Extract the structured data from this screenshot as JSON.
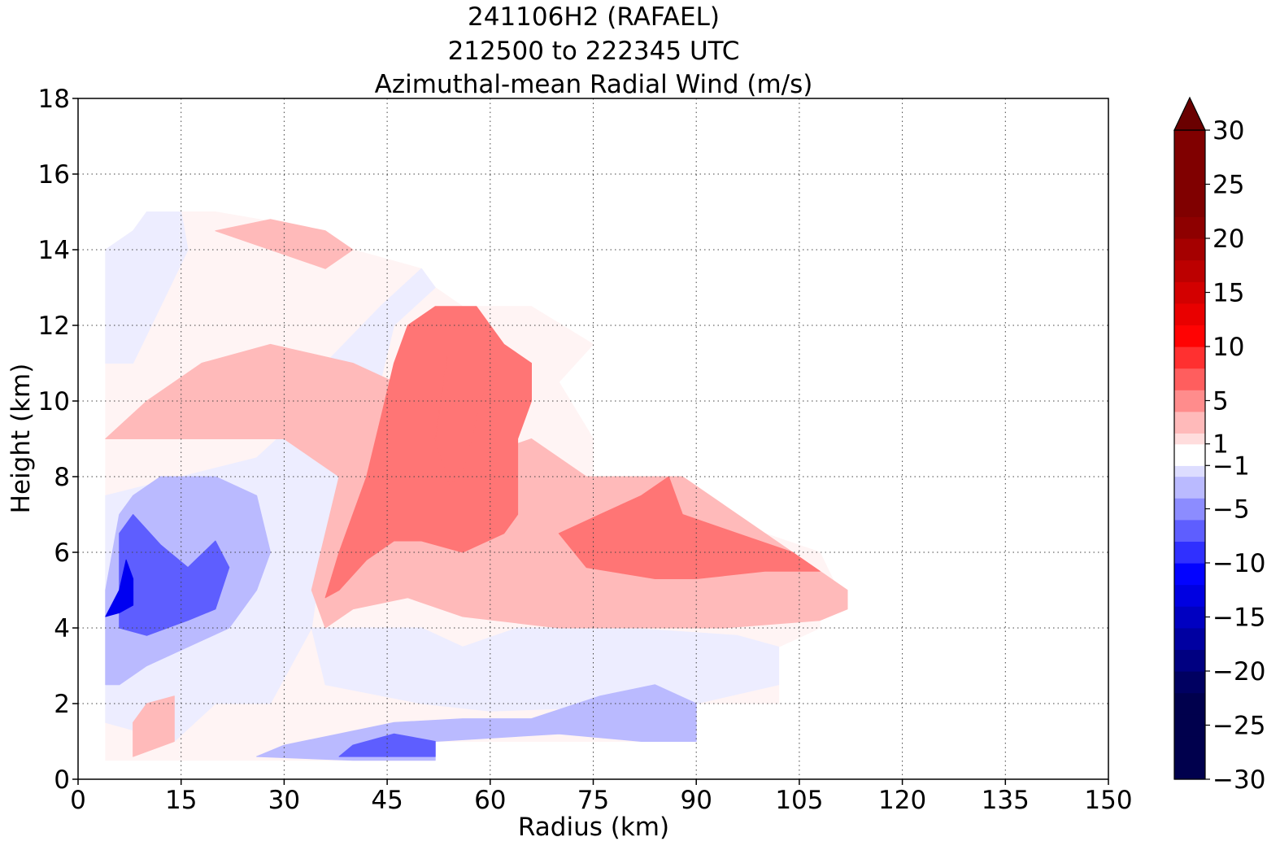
{
  "chart_data": {
    "type": "heatmap",
    "title_lines": [
      "241106H2 (RAFAEL)",
      "212500 to 222345 UTC",
      "Azimuthal-mean Radial Wind (m/s)"
    ],
    "xlabel": "Radius (km)",
    "ylabel": "Height (km)",
    "xlim": [
      0,
      150
    ],
    "ylim": [
      0,
      18
    ],
    "xticks": [
      0,
      15,
      30,
      45,
      60,
      75,
      90,
      105,
      120,
      135,
      150
    ],
    "yticks": [
      0,
      2,
      4,
      6,
      8,
      10,
      12,
      14,
      16,
      18
    ],
    "grid": true,
    "colorbar": {
      "label_values": [
        30,
        25,
        20,
        15,
        10,
        5,
        1,
        -1,
        -5,
        -10,
        -15,
        -20,
        -25,
        -30
      ],
      "labels": [
        "30",
        "25",
        "20",
        "15",
        "10",
        "5",
        "1",
        "−1",
        "−5",
        "−10",
        "−15",
        "−20",
        "−25",
        "−30"
      ],
      "levels": [
        -30,
        -28,
        -26,
        -24,
        -22,
        -20,
        -18,
        -16,
        -14,
        -12,
        -10,
        -8,
        -6,
        -4,
        -2,
        -1,
        1,
        2,
        4,
        6,
        8,
        10,
        12,
        14,
        16,
        18,
        20,
        22,
        24,
        26,
        28,
        30
      ],
      "extend": "max",
      "colormap": "seismic"
    },
    "contour_regions": [
      {
        "value": 0.5,
        "polygon": [
          [
            4,
            0.5
          ],
          [
            52,
            0.5
          ],
          [
            52,
            1
          ],
          [
            90,
            1
          ],
          [
            90,
            2
          ],
          [
            102,
            2
          ],
          [
            102,
            3.5
          ],
          [
            108,
            4
          ],
          [
            108,
            5
          ],
          [
            112,
            5
          ],
          [
            112,
            4.5
          ],
          [
            108,
            6
          ],
          [
            100,
            6.5
          ],
          [
            92,
            7
          ],
          [
            88,
            8
          ],
          [
            75,
            7.5
          ],
          [
            75,
            9
          ],
          [
            70,
            10.5
          ],
          [
            75,
            11.5
          ],
          [
            66,
            12.5
          ],
          [
            56,
            12.5
          ],
          [
            52,
            13
          ],
          [
            50,
            13.5
          ],
          [
            40,
            14
          ],
          [
            36,
            14.5
          ],
          [
            20,
            15
          ],
          [
            10,
            15
          ],
          [
            8,
            14.5
          ],
          [
            4,
            14
          ],
          [
            4,
            0.5
          ]
        ]
      },
      {
        "value": -0.8,
        "polygon": [
          [
            4,
            14
          ],
          [
            8,
            14.5
          ],
          [
            10,
            15
          ],
          [
            15,
            15
          ],
          [
            16,
            14
          ],
          [
            12,
            12.5
          ],
          [
            8,
            11
          ],
          [
            4,
            11
          ],
          [
            4,
            14
          ]
        ]
      },
      {
        "value": -0.8,
        "polygon": [
          [
            36,
            11
          ],
          [
            44,
            12.5
          ],
          [
            50,
            13.5
          ],
          [
            52,
            13
          ],
          [
            46,
            12
          ],
          [
            44,
            10.5
          ],
          [
            40,
            8
          ],
          [
            36,
            6.5
          ],
          [
            36,
            11
          ]
        ]
      },
      {
        "value": -0.8,
        "polygon": [
          [
            4,
            7.5
          ],
          [
            26,
            8.5
          ],
          [
            32,
            9.5
          ],
          [
            36,
            10.5
          ],
          [
            36,
            6.5
          ],
          [
            34,
            4
          ],
          [
            28,
            2
          ],
          [
            20,
            2
          ],
          [
            14,
            1
          ],
          [
            4,
            1.5
          ],
          [
            4,
            7.5
          ]
        ]
      },
      {
        "value": -0.8,
        "polygon": [
          [
            34,
            4
          ],
          [
            50,
            4
          ],
          [
            56,
            3.5
          ],
          [
            64,
            4
          ],
          [
            80,
            4
          ],
          [
            96,
            3.8
          ],
          [
            102,
            3.5
          ],
          [
            102,
            2.5
          ],
          [
            90,
            2
          ],
          [
            60,
            1.8
          ],
          [
            50,
            2
          ],
          [
            36,
            2.5
          ],
          [
            34,
            4
          ]
        ]
      },
      {
        "value": 3.0,
        "polygon": [
          [
            4,
            9
          ],
          [
            10,
            10
          ],
          [
            18,
            11
          ],
          [
            28,
            11.5
          ],
          [
            40,
            11
          ],
          [
            52,
            10
          ],
          [
            58,
            8.5
          ],
          [
            66,
            9
          ],
          [
            74,
            8
          ],
          [
            88,
            8
          ],
          [
            96,
            7
          ],
          [
            104,
            6
          ],
          [
            112,
            5
          ],
          [
            112,
            4.5
          ],
          [
            108,
            4.2
          ],
          [
            94,
            4
          ],
          [
            70,
            4
          ],
          [
            56,
            4.3
          ],
          [
            48,
            4.8
          ],
          [
            40,
            4.5
          ],
          [
            36,
            4
          ],
          [
            34,
            5
          ],
          [
            36,
            6.5
          ],
          [
            38,
            8
          ],
          [
            30,
            9
          ],
          [
            20,
            9
          ],
          [
            10,
            9
          ],
          [
            4,
            9
          ]
        ]
      },
      {
        "value": 3.0,
        "polygon": [
          [
            20,
            14.5
          ],
          [
            28,
            14
          ],
          [
            36,
            13.5
          ],
          [
            40,
            14
          ],
          [
            36,
            14.5
          ],
          [
            28,
            14.8
          ],
          [
            20,
            14.5
          ]
        ]
      },
      {
        "value": 3.0,
        "polygon": [
          [
            10,
            2
          ],
          [
            14,
            2.2
          ],
          [
            14,
            1
          ],
          [
            8,
            0.6
          ],
          [
            8,
            1.5
          ],
          [
            10,
            2
          ]
        ]
      },
      {
        "value": 6.0,
        "polygon": [
          [
            36,
            4.8
          ],
          [
            38,
            6
          ],
          [
            42,
            8
          ],
          [
            44,
            9.5
          ],
          [
            46,
            11
          ],
          [
            48,
            12
          ],
          [
            52,
            12.5
          ],
          [
            58,
            12.5
          ],
          [
            62,
            11.5
          ],
          [
            66,
            11
          ],
          [
            66,
            10
          ],
          [
            64,
            9
          ],
          [
            64,
            7
          ],
          [
            62,
            6.5
          ],
          [
            56,
            6
          ],
          [
            50,
            6.3
          ],
          [
            46,
            6.3
          ],
          [
            42,
            5.8
          ],
          [
            38,
            5
          ],
          [
            36,
            4.8
          ]
        ]
      },
      {
        "value": 6.0,
        "polygon": [
          [
            70,
            6.5
          ],
          [
            76,
            7
          ],
          [
            82,
            7.5
          ],
          [
            86,
            8
          ],
          [
            88,
            7
          ],
          [
            96,
            6.5
          ],
          [
            104,
            6
          ],
          [
            108,
            5.5
          ],
          [
            100,
            5.5
          ],
          [
            90,
            5.3
          ],
          [
            84,
            5.3
          ],
          [
            74,
            5.6
          ],
          [
            70,
            6.5
          ]
        ]
      },
      {
        "value": 6.0,
        "polygon": [
          [
            52,
            9
          ],
          [
            54,
            11.5
          ],
          [
            57,
            12
          ],
          [
            60,
            11
          ],
          [
            58,
            9.5
          ],
          [
            56,
            8
          ],
          [
            54,
            7.8
          ],
          [
            52,
            9
          ]
        ]
      },
      {
        "value": -3.0,
        "polygon": [
          [
            6,
            7
          ],
          [
            8,
            7.5
          ],
          [
            12,
            8
          ],
          [
            20,
            8
          ],
          [
            26,
            7.5
          ],
          [
            28,
            6
          ],
          [
            26,
            5
          ],
          [
            22,
            4
          ],
          [
            16,
            3.5
          ],
          [
            10,
            3
          ],
          [
            6,
            2.5
          ],
          [
            4,
            2.5
          ],
          [
            4,
            5
          ],
          [
            6,
            7
          ]
        ]
      },
      {
        "value": -3.0,
        "polygon": [
          [
            52,
            1
          ],
          [
            70,
            1.2
          ],
          [
            82,
            1
          ],
          [
            90,
            1
          ],
          [
            90,
            2
          ],
          [
            84,
            2.5
          ],
          [
            76,
            2.2
          ],
          [
            66,
            1.6
          ],
          [
            56,
            1.6
          ],
          [
            46,
            1.5
          ],
          [
            38,
            1.2
          ],
          [
            30,
            0.9
          ],
          [
            26,
            0.6
          ],
          [
            40,
            0.5
          ],
          [
            52,
            0.5
          ],
          [
            52,
            1
          ]
        ]
      },
      {
        "value": -7.0,
        "polygon": [
          [
            6,
            6.5
          ],
          [
            8,
            7
          ],
          [
            12,
            6.2
          ],
          [
            16,
            5.6
          ],
          [
            20,
            6.3
          ],
          [
            22,
            5.6
          ],
          [
            20,
            4.5
          ],
          [
            16,
            4.2
          ],
          [
            10,
            3.8
          ],
          [
            6,
            4
          ],
          [
            6,
            6.5
          ]
        ]
      },
      {
        "value": -7.0,
        "polygon": [
          [
            38,
            0.6
          ],
          [
            52,
            0.6
          ],
          [
            52,
            1
          ],
          [
            46,
            1.2
          ],
          [
            40,
            0.9
          ],
          [
            38,
            0.6
          ]
        ]
      },
      {
        "value": -12.0,
        "polygon": [
          [
            4,
            4.3
          ],
          [
            6,
            5
          ],
          [
            7,
            5.8
          ],
          [
            8,
            5.3
          ],
          [
            8,
            4.6
          ],
          [
            6,
            4.4
          ],
          [
            4,
            4.3
          ]
        ]
      }
    ]
  }
}
